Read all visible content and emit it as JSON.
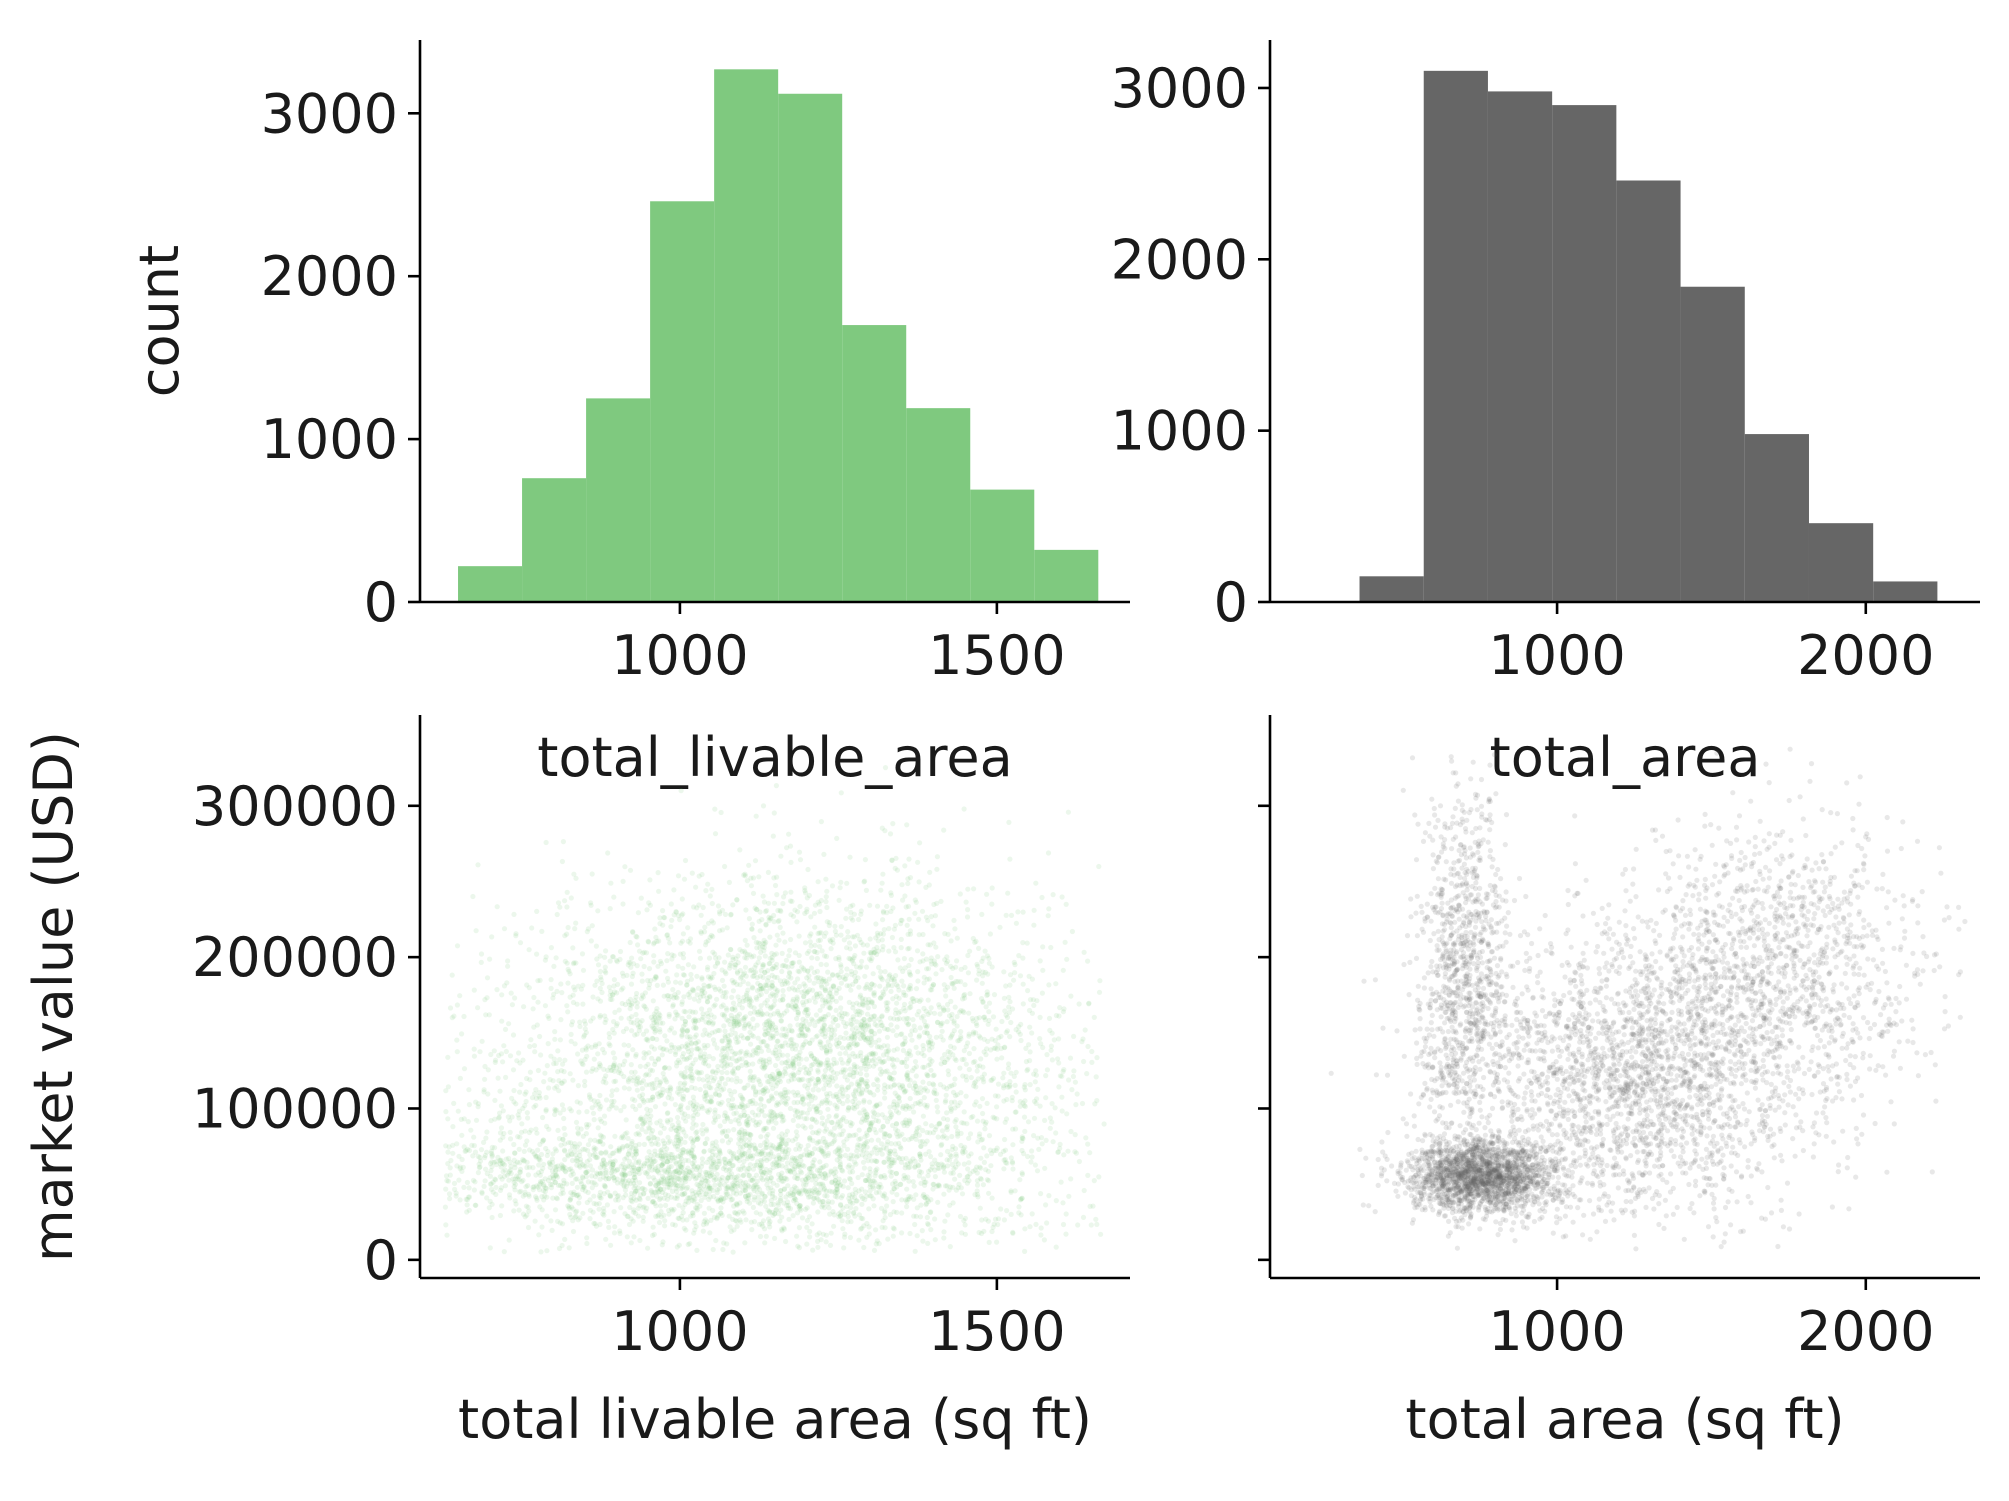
{
  "chart_data": [
    {
      "panel": "top-left",
      "type": "bar",
      "title": "total_livable_area",
      "xlabel": "",
      "ylabel": "count",
      "xlim": [
        590,
        1710
      ],
      "ylim": [
        0,
        3450
      ],
      "xticks": [
        1000,
        1500
      ],
      "yticks": [
        0,
        1000,
        2000,
        3000
      ],
      "color": "#7fc97f",
      "bins": [
        {
          "x0": 650,
          "x1": 751,
          "count": 220
        },
        {
          "x0": 751,
          "x1": 852,
          "count": 760
        },
        {
          "x0": 852,
          "x1": 953,
          "count": 1250
        },
        {
          "x0": 953,
          "x1": 1054,
          "count": 2460
        },
        {
          "x0": 1054,
          "x1": 1155,
          "count": 3270
        },
        {
          "x0": 1155,
          "x1": 1256,
          "count": 3120
        },
        {
          "x0": 1256,
          "x1": 1357,
          "count": 1700
        },
        {
          "x0": 1357,
          "x1": 1458,
          "count": 1190
        },
        {
          "x0": 1458,
          "x1": 1559,
          "count": 690
        },
        {
          "x0": 1559,
          "x1": 1660,
          "count": 320
        }
      ]
    },
    {
      "panel": "top-right",
      "type": "bar",
      "title": "total_area",
      "xlabel": "",
      "ylabel": "",
      "xlim": [
        70,
        2370
      ],
      "ylim": [
        0,
        3280
      ],
      "xticks": [
        1000,
        2000
      ],
      "yticks": [
        0,
        1000,
        2000,
        3000
      ],
      "color": "#666666",
      "bins": [
        {
          "x0": 360,
          "x1": 568,
          "count": 150
        },
        {
          "x0": 568,
          "x1": 776,
          "count": 3100
        },
        {
          "x0": 776,
          "x1": 984,
          "count": 2980
        },
        {
          "x0": 984,
          "x1": 1192,
          "count": 2900
        },
        {
          "x0": 1192,
          "x1": 1400,
          "count": 2460
        },
        {
          "x0": 1400,
          "x1": 1608,
          "count": 1840
        },
        {
          "x0": 1608,
          "x1": 1816,
          "count": 980
        },
        {
          "x0": 1816,
          "x1": 2024,
          "count": 460
        },
        {
          "x0": 2024,
          "x1": 2232,
          "count": 120
        }
      ]
    },
    {
      "panel": "bottom-left",
      "type": "scatter",
      "title": "",
      "xlabel": "total livable area (sq ft)",
      "ylabel": "market value (USD)",
      "xlim": [
        590,
        1710
      ],
      "ylim": [
        -12000,
        360000
      ],
      "xticks": [
        1000,
        1500
      ],
      "yticks": [
        0,
        100000,
        200000,
        300000
      ],
      "color": "#7fc97f",
      "point_alpha": 0.15,
      "clusters": [
        {
          "x_mean": 1150,
          "x_sd": 280,
          "y_mean": 90000,
          "y_sd": 60000,
          "weight": 0.45
        },
        {
          "x_mean": 1180,
          "x_sd": 200,
          "y_mean": 160000,
          "y_sd": 50000,
          "weight": 0.35
        },
        {
          "x_mean": 1000,
          "x_sd": 250,
          "y_mean": 55000,
          "y_sd": 15000,
          "weight": 0.2
        }
      ]
    },
    {
      "panel": "bottom-right",
      "type": "scatter",
      "title": "",
      "xlabel": "total area (sq ft)",
      "ylabel": "",
      "xlim": [
        70,
        2370
      ],
      "ylim": [
        -12000,
        360000
      ],
      "xticks": [
        1000,
        2000
      ],
      "yticks": [
        0,
        100000,
        200000,
        300000
      ],
      "show_ytick_labels": false,
      "color": "#666666",
      "point_alpha": 0.15,
      "clusters": [
        {
          "x_mean": 760,
          "x_sd": 120,
          "y_mean": 55000,
          "y_sd": 12000,
          "weight": 0.3
        },
        {
          "x_mean": 700,
          "x_sd": 70,
          "y_mean": 190000,
          "y_sd": 60000,
          "weight": 0.15
        },
        {
          "x_mean": 1250,
          "x_sd": 280,
          "y_mean": 120000,
          "y_sd": 45000,
          "weight": 0.35
        },
        {
          "x_mean": 1700,
          "x_sd": 250,
          "y_mean": 190000,
          "y_sd": 50000,
          "weight": 0.2
        }
      ]
    }
  ]
}
